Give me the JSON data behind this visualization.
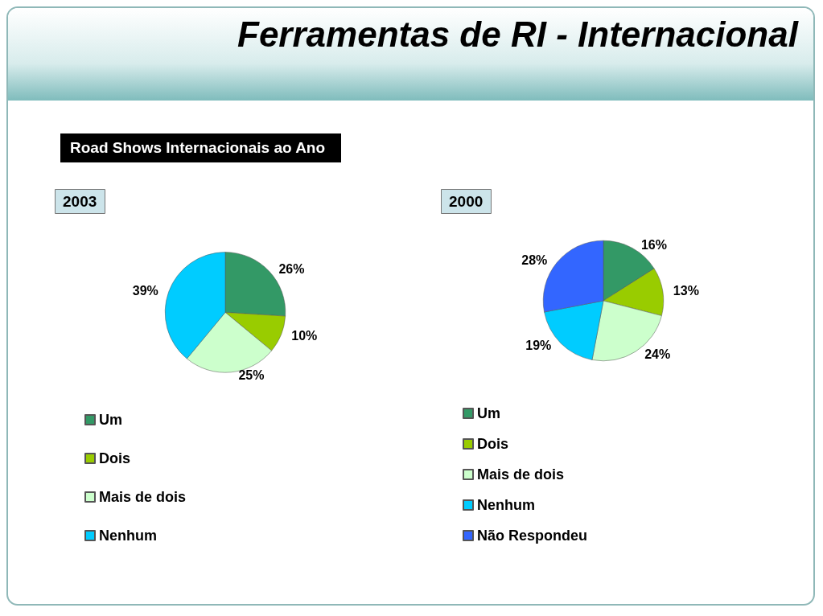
{
  "chart_data": [
    {
      "type": "pie",
      "title": "2003",
      "annotations": [
        "Ferramentas de RI - Internacional",
        "Road Shows Internacionais ao Ano"
      ],
      "categories": [
        "Um",
        "Dois",
        "Mais de dois",
        "Nenhum"
      ],
      "values": [
        26,
        10,
        25,
        39
      ],
      "value_labels": [
        "26%",
        "10%",
        "25%",
        "39%"
      ],
      "colors": [
        "#339966",
        "#99cc00",
        "#ccffcc",
        "#00ccff"
      ],
      "legend": "bottom left"
    },
    {
      "type": "pie",
      "title": "2000",
      "categories": [
        "Um",
        "Dois",
        "Mais de dois",
        "Nenhum",
        "Não Respondeu"
      ],
      "values": [
        16,
        13,
        24,
        19,
        28
      ],
      "value_labels": [
        "16%",
        "13%",
        "24%",
        "19%",
        "28%"
      ],
      "colors": [
        "#339966",
        "#99cc00",
        "#ccffcc",
        "#00ccff",
        "#3366ff"
      ],
      "legend": "bottom left"
    }
  ]
}
